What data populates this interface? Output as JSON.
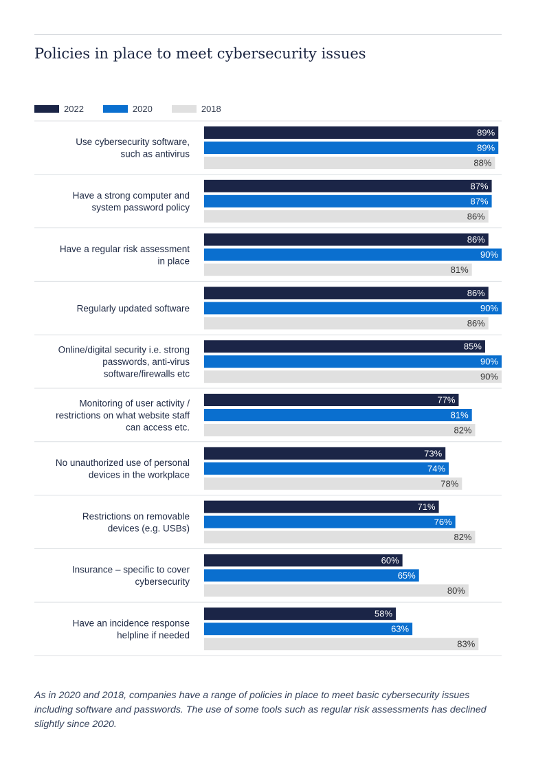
{
  "title": "Policies in place to meet cybersecurity issues",
  "footnote": "As in 2020 and 2018, companies have a range of policies in place to meet basic cybersecurity issues including software and passwords. The use of some tools such as regular risk assessments has declined slightly since 2020.",
  "colors": {
    "series_2022": "#1b2547",
    "series_2020": "#0a6fcf",
    "series_2018": "#e0e0e0",
    "grid": "#dcdfe3"
  },
  "chart_data": {
    "type": "bar",
    "orientation": "horizontal",
    "value_suffix": "%",
    "xlim": [
      0,
      90
    ],
    "legend_position": "top-left",
    "categories": [
      [
        "Use cybersecurity software,",
        "such as antivirus"
      ],
      [
        "Have a strong computer and",
        "system password policy"
      ],
      [
        "Have a regular risk assessment",
        "in place"
      ],
      [
        "Regularly updated software"
      ],
      [
        "Online/digital security i.e. strong",
        "passwords, anti-virus",
        "software/firewalls etc"
      ],
      [
        "Monitoring of user activity /",
        "restrictions on what website staff",
        "can access etc."
      ],
      [
        "No unauthorized use of personal",
        "devices in the workplace"
      ],
      [
        "Restrictions on removable",
        "devices (e.g. USBs)"
      ],
      [
        "Insurance – specific to cover",
        "cybersecurity"
      ],
      [
        "Have an incidence response",
        "helpline if needed"
      ]
    ],
    "series": [
      {
        "name": "2022",
        "color": "#1b2547",
        "label_color": "#ffffff",
        "values": [
          89,
          87,
          86,
          86,
          85,
          77,
          73,
          71,
          60,
          58
        ]
      },
      {
        "name": "2020",
        "color": "#0a6fcf",
        "label_color": "#ffffff",
        "values": [
          89,
          87,
          90,
          90,
          90,
          81,
          74,
          76,
          65,
          63
        ]
      },
      {
        "name": "2018",
        "color": "#e0e0e0",
        "label_color": "#333333",
        "values": [
          88,
          86,
          81,
          86,
          90,
          82,
          78,
          82,
          80,
          83
        ]
      }
    ]
  }
}
